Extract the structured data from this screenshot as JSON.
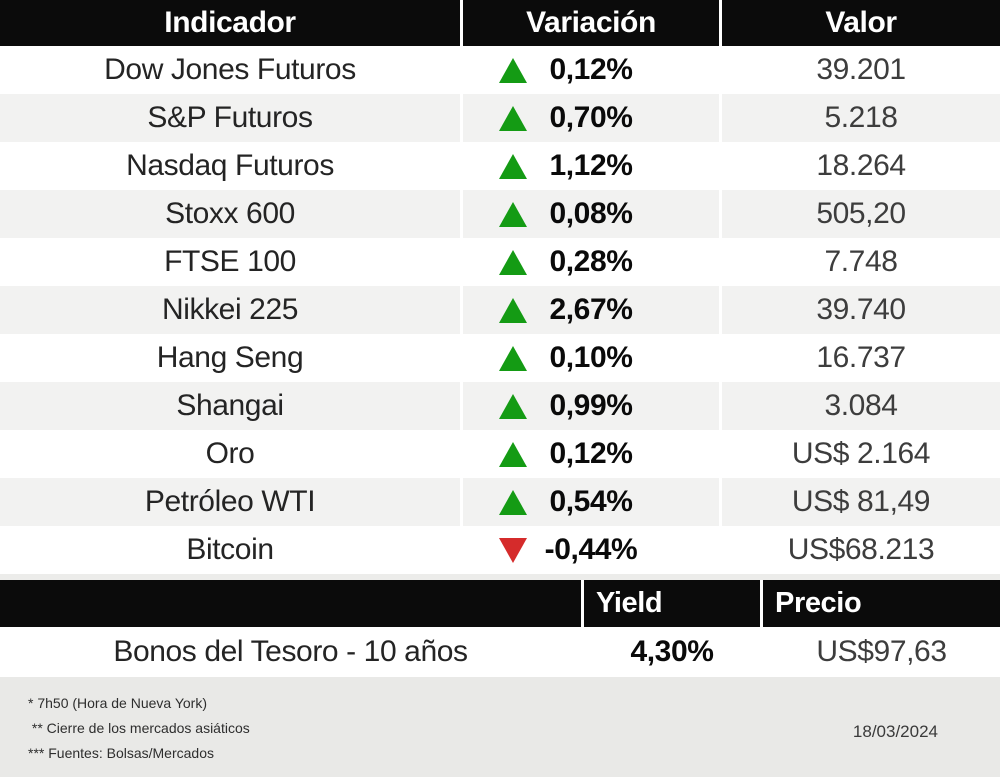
{
  "colors": {
    "up": "#149b14",
    "down": "#d52b2b",
    "header_bg": "#0b0b0b",
    "row_alt_bg": "#f2f2f1",
    "footer_bg": "#e9e9e7"
  },
  "table1": {
    "headers": [
      "Indicador",
      "Variación",
      "Valor"
    ],
    "rows": [
      {
        "name": "Dow Jones Futuros",
        "direction": "up",
        "variation": "0,12%",
        "value": "39.201"
      },
      {
        "name": "S&P Futuros",
        "direction": "up",
        "variation": "0,70%",
        "value": "5.218"
      },
      {
        "name": "Nasdaq Futuros",
        "direction": "up",
        "variation": "1,12%",
        "value": "18.264"
      },
      {
        "name": "Stoxx 600",
        "direction": "up",
        "variation": "0,08%",
        "value": "505,20"
      },
      {
        "name": "FTSE 100",
        "direction": "up",
        "variation": "0,28%",
        "value": "7.748"
      },
      {
        "name": "Nikkei 225",
        "direction": "up",
        "variation": "2,67%",
        "value": "39.740"
      },
      {
        "name": "Hang Seng",
        "direction": "up",
        "variation": "0,10%",
        "value": "16.737"
      },
      {
        "name": "Shangai",
        "direction": "up",
        "variation": "0,99%",
        "value": "3.084"
      },
      {
        "name": "Oro",
        "direction": "up",
        "variation": "0,12%",
        "value": "US$ 2.164"
      },
      {
        "name": "Petróleo WTI",
        "direction": "up",
        "variation": "0,54%",
        "value": "US$ 81,49"
      },
      {
        "name": "Bitcoin",
        "direction": "down",
        "variation": "-0,44%",
        "value": "US$68.213"
      }
    ]
  },
  "table2": {
    "headers": {
      "yield": "Yield",
      "price": "Precio"
    },
    "row": {
      "name": "Bonos del Tesoro - 10 años",
      "yield": "4,30%",
      "price": "US$97,63"
    }
  },
  "footer": {
    "notes": [
      "* 7h50 (Hora de Nueva York)",
      " ** Cierre de los mercados asiáticos",
      "*** Fuentes: Bolsas/Mercados"
    ],
    "date": "18/03/2024"
  },
  "chart_data": {
    "type": "table",
    "title": "",
    "columns": [
      "Indicador",
      "Variación",
      "Valor"
    ],
    "rows": [
      [
        "Dow Jones Futuros",
        "+0,12%",
        "39.201"
      ],
      [
        "S&P Futuros",
        "+0,70%",
        "5.218"
      ],
      [
        "Nasdaq Futuros",
        "+1,12%",
        "18.264"
      ],
      [
        "Stoxx 600",
        "+0,08%",
        "505,20"
      ],
      [
        "FTSE 100",
        "+0,28%",
        "7.748"
      ],
      [
        "Nikkei 225",
        "+2,67%",
        "39.740"
      ],
      [
        "Hang Seng",
        "+0,10%",
        "16.737"
      ],
      [
        "Shangai",
        "+0,99%",
        "3.084"
      ],
      [
        "Oro",
        "+0,12%",
        "US$ 2.164"
      ],
      [
        "Petróleo WTI",
        "+0,54%",
        "US$ 81,49"
      ],
      [
        "Bitcoin",
        "-0,44%",
        "US$68.213"
      ]
    ],
    "secondary_table": {
      "columns": [
        "",
        "Yield",
        "Precio"
      ],
      "rows": [
        [
          "Bonos del Tesoro - 10 años",
          "4,30%",
          "US$97,63"
        ]
      ]
    },
    "footnotes": [
      "* 7h50 (Hora de Nueva York)",
      "** Cierre de los mercados asiáticos",
      "*** Fuentes: Bolsas/Mercados"
    ],
    "date": "18/03/2024"
  }
}
